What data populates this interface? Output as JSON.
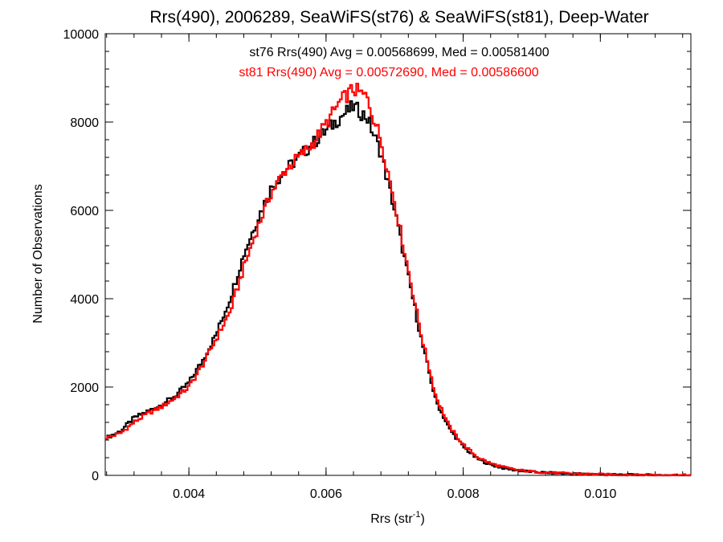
{
  "chart_data": {
    "type": "line",
    "style": "step-histogram",
    "title": "Rrs(490), 2006289, SeaWiFS(st76) & SeaWiFS(st81), Deep-Water",
    "xlabel_main": "Rrs (str",
    "xlabel_sup": "-1",
    "xlabel_close": ")",
    "ylabel": "Number of Observations",
    "xlim": [
      0.00278,
      0.01132
    ],
    "ylim": [
      0,
      10000
    ],
    "xticks": [
      0.004,
      0.006,
      0.008,
      0.01
    ],
    "xtick_labels": [
      "0.004",
      "0.006",
      "0.008",
      "0.010"
    ],
    "yticks": [
      0,
      2000,
      4000,
      6000,
      8000,
      10000
    ],
    "ytick_labels": [
      "0",
      "2000",
      "4000",
      "6000",
      "8000",
      "10000"
    ],
    "grid": false,
    "legend_position": "top-center",
    "series": [
      {
        "legend": "st76 Rrs(490) Avg = 0.00568699, Med = 0.00581400",
        "color": "#000000",
        "x": [
          0.0028,
          0.003,
          0.0032,
          0.0034,
          0.0036,
          0.0038,
          0.004,
          0.0042,
          0.0044,
          0.0046,
          0.0048,
          0.005,
          0.0052,
          0.0054,
          0.0056,
          0.0058,
          0.006,
          0.0062,
          0.0064,
          0.0066,
          0.0068,
          0.007,
          0.0072,
          0.0074,
          0.0076,
          0.0078,
          0.008,
          0.0082,
          0.0084,
          0.0086,
          0.0088,
          0.009,
          0.0092,
          0.0095,
          0.0098,
          0.0102,
          0.0106,
          0.011,
          0.0113
        ],
        "y": [
          850,
          1000,
          1300,
          1450,
          1600,
          1800,
          2100,
          2600,
          3200,
          4000,
          5000,
          5800,
          6500,
          6900,
          7200,
          7500,
          7800,
          8100,
          8350,
          8100,
          7300,
          6000,
          4500,
          3000,
          1700,
          1050,
          650,
          380,
          240,
          160,
          110,
          80,
          60,
          40,
          30,
          15,
          8,
          5,
          3
        ]
      },
      {
        "legend": "st81 Rrs(490) Avg = 0.00572690, Med = 0.00586600",
        "color": "#ff0000",
        "x": [
          0.0028,
          0.003,
          0.0032,
          0.0034,
          0.0036,
          0.0038,
          0.004,
          0.0042,
          0.0044,
          0.0046,
          0.0048,
          0.005,
          0.0052,
          0.0054,
          0.0056,
          0.0058,
          0.006,
          0.0062,
          0.0064,
          0.0066,
          0.0068,
          0.007,
          0.0072,
          0.0074,
          0.0076,
          0.0078,
          0.008,
          0.0082,
          0.0084,
          0.0086,
          0.0088,
          0.009,
          0.0092,
          0.0095,
          0.0098,
          0.0102,
          0.0106,
          0.011,
          0.0113
        ],
        "y": [
          850,
          950,
          1200,
          1400,
          1550,
          1750,
          2000,
          2500,
          3100,
          3700,
          4700,
          5600,
          6400,
          6900,
          7200,
          7500,
          7950,
          8450,
          8750,
          8550,
          7600,
          6200,
          4650,
          3100,
          1800,
          1100,
          700,
          420,
          270,
          180,
          120,
          85,
          65,
          45,
          30,
          15,
          8,
          5,
          3
        ]
      }
    ]
  }
}
